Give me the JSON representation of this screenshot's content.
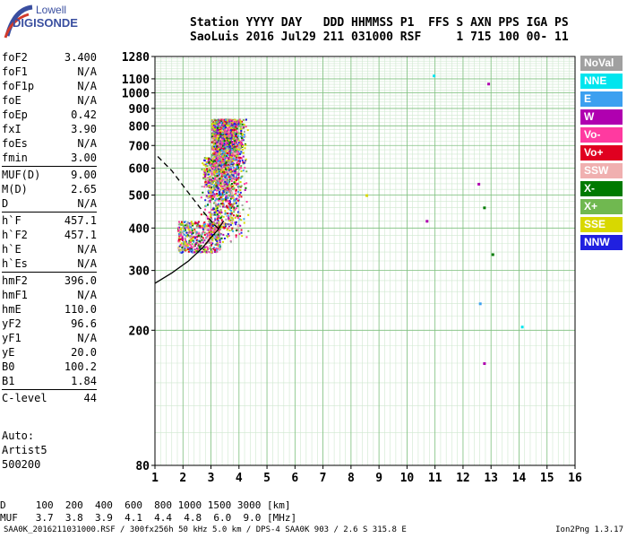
{
  "logo": {
    "line1": "Lowell",
    "line2": "DIGISONDE"
  },
  "header": {
    "line1": "Station YYYY DAY   DDD HHMMSS P1  FFS S AXN PPS IGA PS",
    "line2": "SaoLuis 2016 Jul29 211 031000 RSF     1 715 100 00- 11"
  },
  "params": [
    {
      "k": "foF2",
      "v": "3.400"
    },
    {
      "k": "foF1",
      "v": "N/A"
    },
    {
      "k": "foF1p",
      "v": "N/A"
    },
    {
      "k": "foE",
      "v": "N/A"
    },
    {
      "k": "foEp",
      "v": "0.42"
    },
    {
      "k": "fxI",
      "v": "3.90"
    },
    {
      "k": "foEs",
      "v": "N/A"
    },
    {
      "k": "fmin",
      "v": "3.00"
    },
    {
      "k": "MUF(D)",
      "v": "9.00"
    },
    {
      "k": "M(D)",
      "v": "2.65"
    },
    {
      "k": "D",
      "v": "N/A"
    },
    {
      "k": "h`F",
      "v": "457.1"
    },
    {
      "k": "h`F2",
      "v": "457.1"
    },
    {
      "k": "h`E",
      "v": "N/A"
    },
    {
      "k": "h`Es",
      "v": "N/A"
    },
    {
      "k": "hmF2",
      "v": "396.0"
    },
    {
      "k": "hmF1",
      "v": "N/A"
    },
    {
      "k": "hmE",
      "v": "110.0"
    },
    {
      "k": "yF2",
      "v": "96.6"
    },
    {
      "k": "yF1",
      "v": "N/A"
    },
    {
      "k": "yE",
      "v": "20.0"
    },
    {
      "k": "B0",
      "v": "100.2"
    },
    {
      "k": "B1",
      "v": "1.84"
    },
    {
      "k": "C-level",
      "v": "44"
    }
  ],
  "auto": {
    "line1": "Auto:",
    "line2": "Artist5",
    "line3": "500200"
  },
  "legend": [
    {
      "label": "NoVal",
      "color": "#a0a0a0"
    },
    {
      "label": "NNE",
      "color": "#00e5ee"
    },
    {
      "label": "E",
      "color": "#3ca0f0"
    },
    {
      "label": "W",
      "color": "#b000b0"
    },
    {
      "label": "Vo-",
      "color": "#ff3aa0"
    },
    {
      "label": "Vo+",
      "color": "#e00020"
    },
    {
      "label": "SSW",
      "color": "#f0b0b0"
    },
    {
      "label": "X-",
      "color": "#007a00"
    },
    {
      "label": "X+",
      "color": "#70b850"
    },
    {
      "label": "SSE",
      "color": "#d8d800"
    },
    {
      "label": "NNW",
      "color": "#2020e0"
    }
  ],
  "footer": {
    "line1": "D     100  200  400  600  800 1000 1500 3000 [km]",
    "line2": "MUF   3.7  3.8  3.9  4.1  4.4  4.8  6.0  9.0 [MHz]"
  },
  "footline": {
    "left": "SAA0K_2016211031000.RSF / 300fx256h 50 kHz 5.0 km / DPS-4 SAA0K 903 / 2.6 S 315.8 E",
    "right": "Ion2Png 1.3.17"
  },
  "chart_data": {
    "type": "scatter",
    "title": "",
    "xlabel": "",
    "ylabel": "",
    "xlim": [
      1,
      16
    ],
    "ylim": [
      80,
      1280
    ],
    "yscale": "log",
    "grid": true,
    "x_ticks": [
      1,
      2,
      3,
      4,
      5,
      6,
      7,
      8,
      9,
      10,
      11,
      12,
      13,
      14,
      15,
      16
    ],
    "y_ticks": [
      80,
      200,
      300,
      400,
      500,
      600,
      700,
      800,
      900,
      1000,
      1100,
      1280
    ],
    "series": [
      {
        "name": "NNE",
        "points": [
          [
            10.95,
            1125
          ],
          [
            14.1,
            205
          ]
        ]
      },
      {
        "name": "E",
        "points": [
          [
            12.6,
            240
          ]
        ]
      },
      {
        "name": "W",
        "points": [
          [
            12.75,
            160
          ],
          [
            12.55,
            540
          ],
          [
            10.7,
            420
          ],
          [
            12.9,
            1065
          ]
        ]
      },
      {
        "name": "SSE",
        "points": [
          [
            8.55,
            500
          ]
        ]
      },
      {
        "name": "X-",
        "points": [
          [
            13.05,
            335
          ],
          [
            12.75,
            460
          ]
        ]
      }
    ],
    "traces": [
      {
        "name": "dashed",
        "style": "dashed",
        "points": [
          [
            1.1,
            650
          ],
          [
            1.6,
            590
          ],
          [
            2.1,
            520
          ],
          [
            2.6,
            460
          ],
          [
            3.0,
            420
          ],
          [
            3.3,
            395
          ]
        ]
      },
      {
        "name": "solid",
        "style": "solid",
        "points": [
          [
            1.0,
            275
          ],
          [
            1.6,
            295
          ],
          [
            2.2,
            320
          ],
          [
            2.7,
            350
          ],
          [
            3.0,
            375
          ],
          [
            3.25,
            395
          ],
          [
            3.45,
            420
          ]
        ]
      }
    ]
  }
}
